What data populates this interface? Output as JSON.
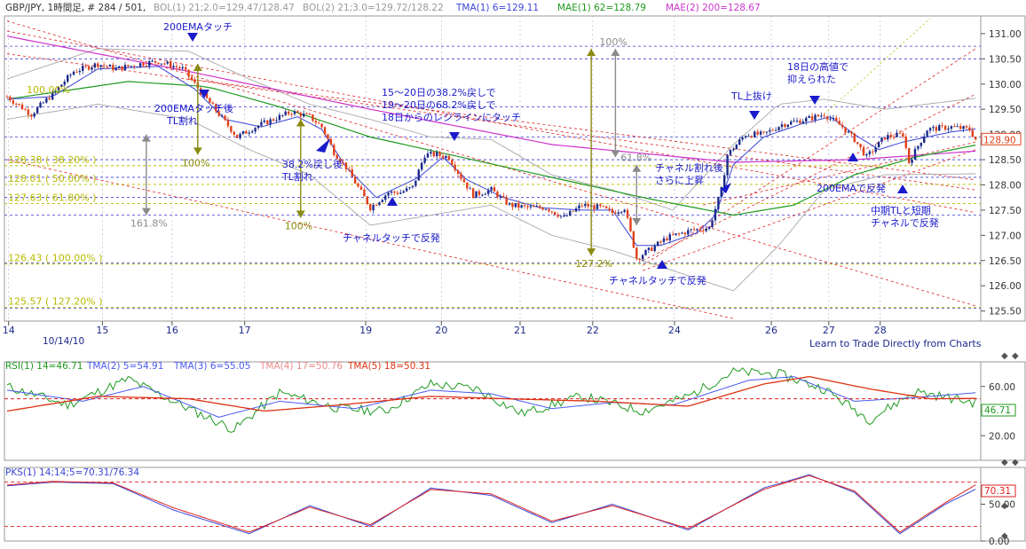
{
  "header": {
    "symbol": "GBP/JPY",
    "timeframe": "1時間足",
    "bar_index": "# 284 / 501",
    "bol1": "BOL(1) 21;2.0=129.47/128.47",
    "bol2": "BOL(2) 21;3.0=129.72/128.22",
    "tma1": "TMA(1) 6=129.11",
    "mae1": "MAE(1) 62=128.79",
    "mae2": "MAE(2) 200=128.67"
  },
  "colors": {
    "bull": "#1a2a8a",
    "bear": "#e0401a",
    "tma": "#3a46d8",
    "mae62": "#1e9a1e",
    "mae200": "#cc33cc",
    "bollinger": "#a8a8a8",
    "channel": "#dd2222",
    "fib": "#b8b800",
    "grid_blue": "#3a3ad0",
    "annotation": "#1a1acc",
    "rsi": "#1e9a1e",
    "tma_rsi_2": "#4a5af0",
    "tma_rsi_5": "#dd3311",
    "pks_k": "#3a46d8",
    "pks_d": "#dd2222"
  },
  "chart_data": [
    {
      "type": "candlestick",
      "panel": "main",
      "pair": "GBP/JPY",
      "ylim": [
        125.3,
        131.35
      ],
      "yticks": [
        "131.00",
        "130.50",
        "130.00",
        "129.50",
        "129.00",
        "128.50",
        "128.00",
        "127.50",
        "127.00",
        "126.50",
        "126.00",
        "125.50"
      ],
      "ytick_values": [
        131.0,
        130.5,
        130.0,
        129.5,
        129.0,
        128.5,
        128.0,
        127.5,
        127.0,
        126.5,
        126.0,
        125.5
      ],
      "xticks": [
        "14",
        "15",
        "16",
        "17",
        "19",
        "20",
        "21",
        "22",
        "24",
        "26",
        "27",
        "28"
      ],
      "xtick_positions": [
        0.5,
        31.5,
        54.5,
        78.5,
        118.5,
        143.5,
        169.5,
        193.5,
        220.5,
        252.5,
        271.5,
        288.5
      ],
      "date_label": "10/14/10",
      "last_price": "128.90",
      "grid": true,
      "path": [
        [
          0,
          129.75
        ],
        [
          8,
          129.4
        ],
        [
          15,
          129.8
        ],
        [
          22,
          130.25
        ],
        [
          30,
          130.4
        ],
        [
          36,
          130.3
        ],
        [
          44,
          130.4
        ],
        [
          50,
          130.45
        ],
        [
          58,
          130.3
        ],
        [
          66,
          129.7
        ],
        [
          72,
          129.25
        ],
        [
          76,
          128.95
        ],
        [
          82,
          129.15
        ],
        [
          88,
          129.3
        ],
        [
          94,
          129.45
        ],
        [
          100,
          129.35
        ],
        [
          104,
          129.15
        ],
        [
          108,
          128.65
        ],
        [
          112,
          128.35
        ],
        [
          116,
          127.95
        ],
        [
          120,
          127.55
        ],
        [
          126,
          127.85
        ],
        [
          130,
          127.85
        ],
        [
          134,
          127.95
        ],
        [
          138,
          128.6
        ],
        [
          142,
          128.6
        ],
        [
          146,
          128.55
        ],
        [
          150,
          128.15
        ],
        [
          154,
          127.8
        ],
        [
          160,
          127.9
        ],
        [
          166,
          127.6
        ],
        [
          172,
          127.55
        ],
        [
          178,
          127.55
        ],
        [
          184,
          127.35
        ],
        [
          190,
          127.6
        ],
        [
          196,
          127.55
        ],
        [
          200,
          127.45
        ],
        [
          204,
          127.55
        ],
        [
          208,
          126.55
        ],
        [
          212,
          126.7
        ],
        [
          218,
          126.95
        ],
        [
          226,
          127.1
        ],
        [
          232,
          127.15
        ],
        [
          236,
          127.9
        ],
        [
          238,
          128.6
        ],
        [
          244,
          129.0
        ],
        [
          250,
          129.0
        ],
        [
          256,
          129.2
        ],
        [
          264,
          129.3
        ],
        [
          270,
          129.4
        ],
        [
          276,
          129.15
        ],
        [
          280,
          128.9
        ],
        [
          284,
          128.55
        ],
        [
          290,
          128.95
        ],
        [
          296,
          129.0
        ],
        [
          298,
          128.45
        ],
        [
          304,
          129.1
        ],
        [
          312,
          129.15
        ],
        [
          318,
          129.1
        ],
        [
          320,
          128.9
        ]
      ],
      "tma6_path": [
        [
          0,
          129.7
        ],
        [
          15,
          129.75
        ],
        [
          30,
          130.3
        ],
        [
          50,
          130.35
        ],
        [
          62,
          129.9
        ],
        [
          72,
          129.3
        ],
        [
          84,
          129.15
        ],
        [
          96,
          129.35
        ],
        [
          104,
          129.1
        ],
        [
          112,
          128.35
        ],
        [
          122,
          127.75
        ],
        [
          136,
          128.15
        ],
        [
          144,
          128.55
        ],
        [
          152,
          128.1
        ],
        [
          164,
          127.75
        ],
        [
          176,
          127.55
        ],
        [
          190,
          127.5
        ],
        [
          200,
          127.5
        ],
        [
          208,
          126.8
        ],
        [
          216,
          126.8
        ],
        [
          228,
          127.05
        ],
        [
          234,
          127.4
        ],
        [
          240,
          128.4
        ],
        [
          250,
          128.95
        ],
        [
          262,
          129.2
        ],
        [
          272,
          129.35
        ],
        [
          280,
          129.0
        ],
        [
          288,
          128.7
        ],
        [
          296,
          128.85
        ],
        [
          304,
          128.95
        ],
        [
          312,
          129.05
        ],
        [
          320,
          129.11
        ]
      ],
      "mae62_path": [
        [
          0,
          129.7
        ],
        [
          40,
          130.05
        ],
        [
          66,
          129.95
        ],
        [
          90,
          129.55
        ],
        [
          120,
          128.95
        ],
        [
          150,
          128.55
        ],
        [
          180,
          128.15
        ],
        [
          210,
          127.75
        ],
        [
          240,
          127.4
        ],
        [
          260,
          127.6
        ],
        [
          280,
          128.2
        ],
        [
          300,
          128.55
        ],
        [
          320,
          128.79
        ]
      ],
      "mae200_path": [
        [
          0,
          130.95
        ],
        [
          60,
          130.25
        ],
        [
          120,
          129.5
        ],
        [
          180,
          128.8
        ],
        [
          240,
          128.45
        ],
        [
          280,
          128.5
        ],
        [
          320,
          128.67
        ]
      ],
      "bollinger_upper_path": [
        [
          0,
          130.1
        ],
        [
          30,
          130.7
        ],
        [
          60,
          130.65
        ],
        [
          80,
          130.1
        ],
        [
          100,
          129.6
        ],
        [
          120,
          129.3
        ],
        [
          140,
          128.95
        ],
        [
          160,
          128.9
        ],
        [
          180,
          128.2
        ],
        [
          200,
          127.9
        ],
        [
          220,
          127.5
        ],
        [
          240,
          128.8
        ],
        [
          255,
          129.6
        ],
        [
          270,
          129.7
        ],
        [
          290,
          129.5
        ],
        [
          320,
          129.72
        ]
      ],
      "bollinger_lower_path": [
        [
          0,
          129.3
        ],
        [
          30,
          129.6
        ],
        [
          60,
          129.3
        ],
        [
          80,
          128.7
        ],
        [
          100,
          128.2
        ],
        [
          120,
          127.2
        ],
        [
          140,
          127.4
        ],
        [
          160,
          127.6
        ],
        [
          180,
          127.0
        ],
        [
          200,
          126.7
        ],
        [
          220,
          126.3
        ],
        [
          240,
          125.9
        ],
        [
          255,
          126.8
        ],
        [
          270,
          127.9
        ],
        [
          290,
          128.2
        ],
        [
          320,
          128.22
        ]
      ],
      "fibonacci_levels": [
        {
          "label": "128.38 ( 38.20% )",
          "price": 128.38
        },
        {
          "label": "128.01 ( 50.00% )",
          "price": 128.01
        },
        {
          "label": "127.63 ( 61.80% )",
          "price": 127.63
        },
        {
          "label": "126.43 ( 100.00% )",
          "price": 126.43
        },
        {
          "label": "125.57 ( 127.20% )",
          "price": 125.57
        }
      ],
      "partial_fib_label": "100.00%",
      "horizontal_lines": [
        {
          "price": 130.75
        },
        {
          "price": 130.5
        },
        {
          "price": 129.55
        },
        {
          "price": 128.95
        },
        {
          "price": 128.5
        },
        {
          "price": 127.4
        },
        {
          "price": 128.15
        },
        {
          "price": 127.75
        },
        {
          "price": 126.45
        },
        {
          "price": 125.55
        }
      ],
      "measurement_arrows": [
        {
          "x": 46,
          "from": 129.0,
          "to": 127.4,
          "label": "161.8%",
          "color": "gray"
        },
        {
          "x": 63,
          "from": 130.4,
          "to": 128.6,
          "label": "100%",
          "color": "olive"
        },
        {
          "x": 97,
          "from": 129.3,
          "to": 127.35,
          "label": "100%",
          "color": "olive"
        },
        {
          "x": 193,
          "from": 130.7,
          "to": 126.6,
          "label": "127.2%",
          "color": "olive"
        },
        {
          "x": 201,
          "from": 130.7,
          "to": 128.55,
          "label": "100%",
          "color": "gray"
        },
        {
          "x": 208,
          "from": 128.4,
          "to": 127.2,
          "label": "61.8%",
          "color": "gray"
        }
      ],
      "annotations": [
        "200EMAタッチ",
        "200EMAタッチ後\nTL割れ",
        "38.2%戻し後\nTL割れ",
        "15～20日の38.2%戻しで\n19～20日の68.2%戻しで\n18日からのレジラインにタッチ",
        "チャネルタッチで反発",
        "チャネルタッチで反発",
        "チャネル割れ後\nさらに上昇",
        "TL上抜け",
        "18日の高値で\n抑えられた",
        "200EMAで反発",
        "中期TLと短期\nチャネルで反発"
      ],
      "footer_link": "Learn to Trade Directly from Charts"
    },
    {
      "type": "line",
      "panel": "rsi",
      "ylim": [
        0,
        80
      ],
      "yticks": [
        "60.00",
        "40.00",
        "20.00"
      ],
      "ytick_values": [
        60,
        40,
        20
      ],
      "last_value": "46.71",
      "legend": [
        "RSI(1) 14=46.71",
        "TMA(2) 5=54.91",
        "TMA(3) 6=55.05",
        "TMA(4) 17=50.76",
        "TMA(5) 18=50.31"
      ],
      "series": [
        {
          "name": "RSI(1) 14",
          "points": [
            [
              0,
              60
            ],
            [
              20,
              45
            ],
            [
              40,
              66
            ],
            [
              60,
              42
            ],
            [
              75,
              25
            ],
            [
              90,
              55
            ],
            [
              110,
              42
            ],
            [
              125,
              40
            ],
            [
              140,
              62
            ],
            [
              155,
              58
            ],
            [
              170,
              38
            ],
            [
              190,
              52
            ],
            [
              210,
              40
            ],
            [
              225,
              52
            ],
            [
              240,
              72
            ],
            [
              255,
              70
            ],
            [
              270,
              58
            ],
            [
              285,
              33
            ],
            [
              300,
              56
            ],
            [
              320,
              46.71
            ]
          ]
        },
        {
          "name": "TMA(2) 5",
          "points": [
            [
              0,
              57
            ],
            [
              25,
              48
            ],
            [
              45,
              60
            ],
            [
              70,
              35
            ],
            [
              90,
              48
            ],
            [
              115,
              42
            ],
            [
              140,
              57
            ],
            [
              160,
              54
            ],
            [
              180,
              42
            ],
            [
              200,
              47
            ],
            [
              220,
              45
            ],
            [
              245,
              65
            ],
            [
              260,
              68
            ],
            [
              280,
              48
            ],
            [
              300,
              51
            ],
            [
              320,
              54.91
            ]
          ]
        },
        {
          "name": "TMA(5) 18",
          "points": [
            [
              0,
              40
            ],
            [
              30,
              52
            ],
            [
              60,
              50
            ],
            [
              85,
              40
            ],
            [
              110,
              45
            ],
            [
              140,
              52
            ],
            [
              165,
              50
            ],
            [
              195,
              48
            ],
            [
              225,
              44
            ],
            [
              250,
              62
            ],
            [
              265,
              68
            ],
            [
              285,
              58
            ],
            [
              305,
              50
            ],
            [
              320,
              50.31
            ]
          ]
        }
      ]
    },
    {
      "type": "line",
      "panel": "pks",
      "ylim": [
        0,
        100
      ],
      "yticks": [
        "50.00",
        "0.00"
      ],
      "ytick_values": [
        50,
        0
      ],
      "last_value": "70.31",
      "legend": "PKS(1) 14;14;5=70.31/76.34",
      "series": [
        {
          "name": "PKS %K",
          "points": [
            [
              0,
              75
            ],
            [
              15,
              80
            ],
            [
              35,
              78
            ],
            [
              55,
              42
            ],
            [
              80,
              10
            ],
            [
              100,
              48
            ],
            [
              120,
              20
            ],
            [
              140,
              72
            ],
            [
              160,
              62
            ],
            [
              180,
              25
            ],
            [
              200,
              50
            ],
            [
              225,
              15
            ],
            [
              250,
              72
            ],
            [
              265,
              90
            ],
            [
              280,
              66
            ],
            [
              295,
              10
            ],
            [
              310,
              50
            ],
            [
              320,
              70.31
            ]
          ]
        },
        {
          "name": "PKS %D",
          "points": [
            [
              0,
              76
            ],
            [
              15,
              81
            ],
            [
              35,
              79
            ],
            [
              55,
              45
            ],
            [
              80,
              12
            ],
            [
              100,
              46
            ],
            [
              120,
              22
            ],
            [
              140,
              70
            ],
            [
              160,
              64
            ],
            [
              180,
              27
            ],
            [
              200,
              48
            ],
            [
              225,
              17
            ],
            [
              250,
              70
            ],
            [
              265,
              89
            ],
            [
              280,
              68
            ],
            [
              295,
              12
            ],
            [
              310,
              52
            ],
            [
              320,
              76.34
            ]
          ]
        }
      ]
    }
  ]
}
